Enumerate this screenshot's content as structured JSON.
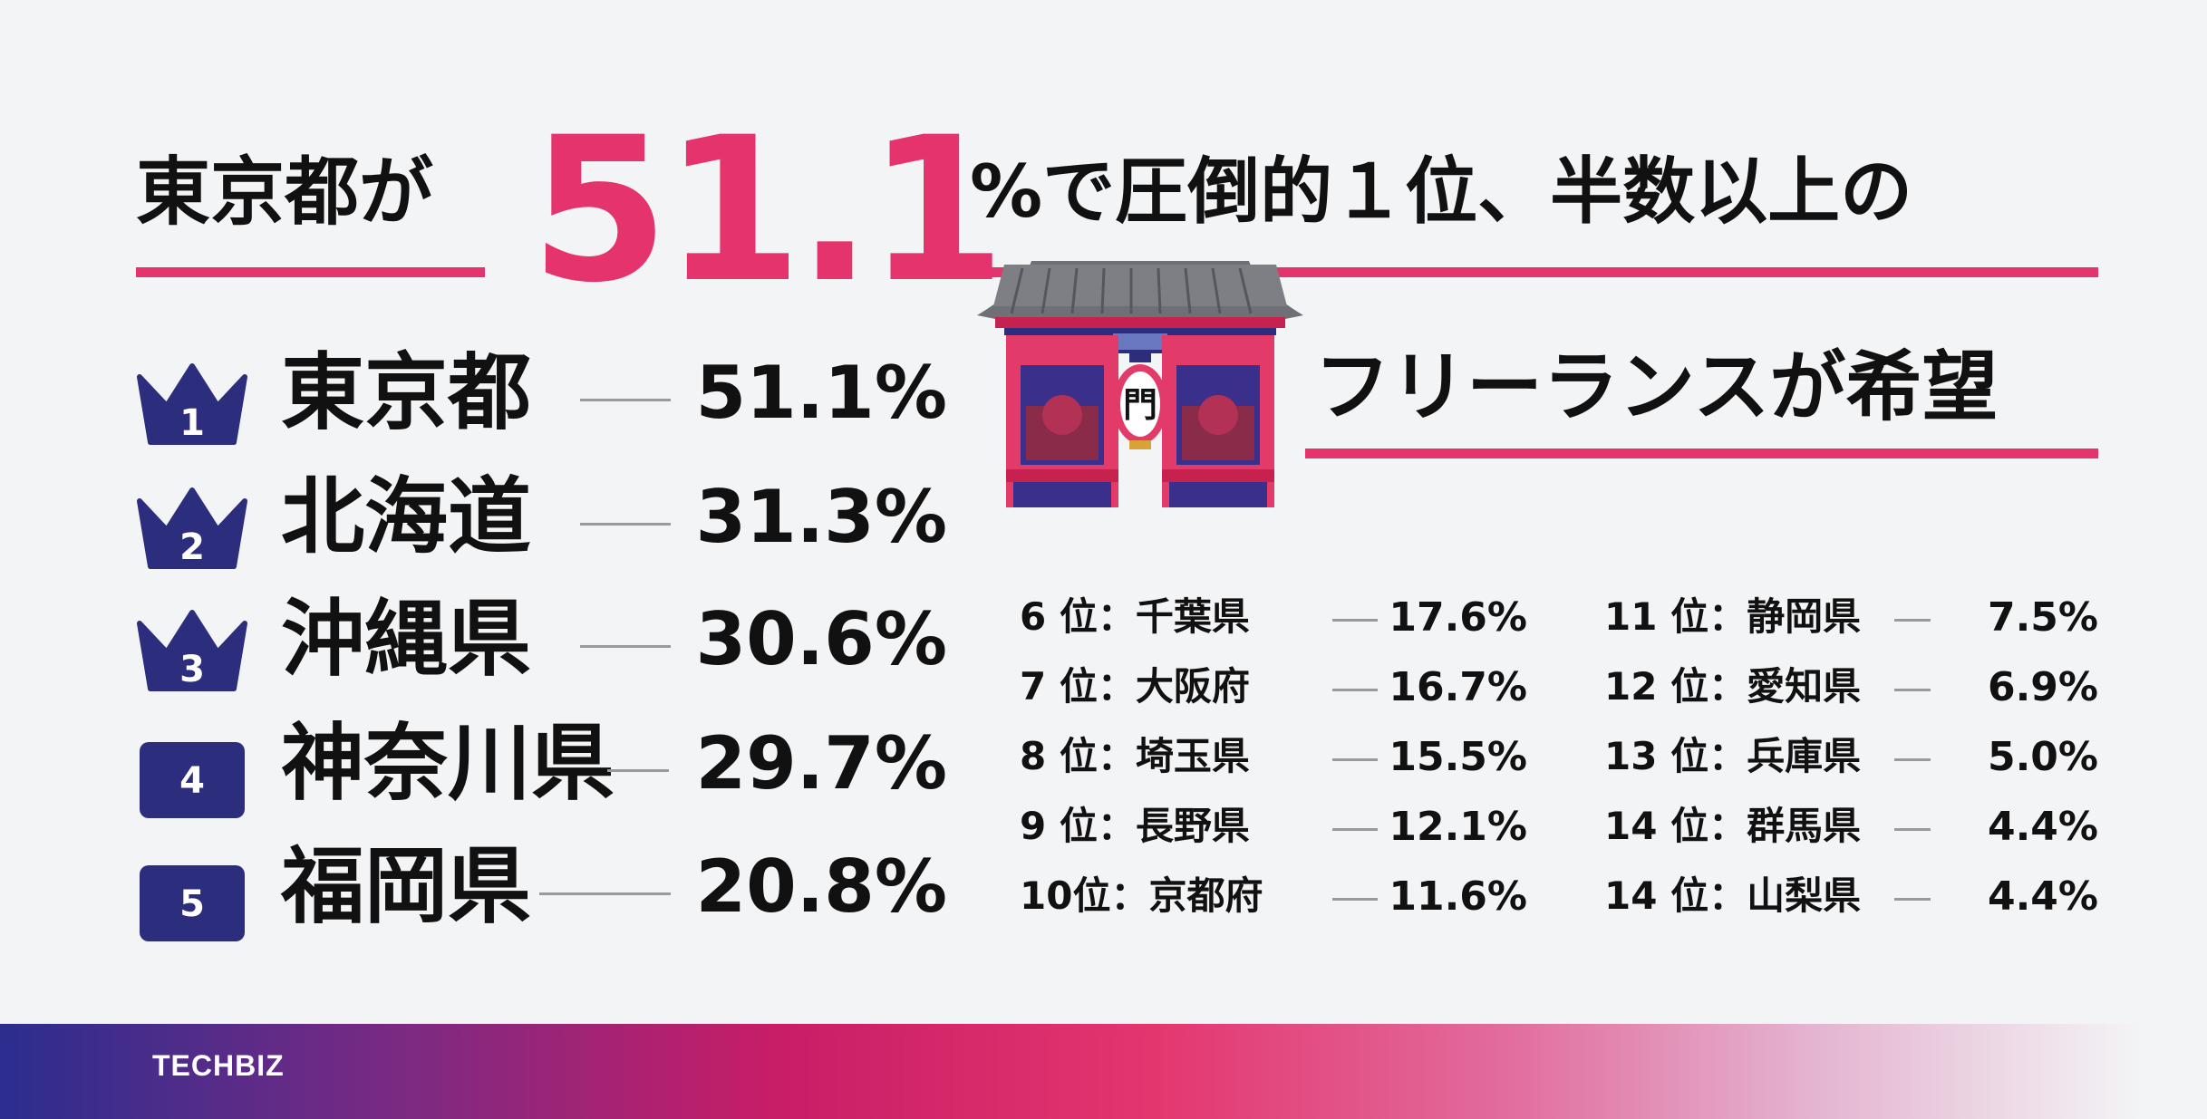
{
  "headline": {
    "prefix": "東京都が",
    "highlight": "51.1",
    "suffix": "%で圧倒的１位、半数以上の",
    "line2": "フリーランスが希望"
  },
  "colors": {
    "accent": "#e5336d",
    "badge": "#2d2d7e",
    "text": "#111111",
    "background": "#f3f4f6"
  },
  "gate_icon": "kaminarimon-gate-icon",
  "crown_icon": "crown-icon",
  "chart_data": {
    "type": "table",
    "unit": "%",
    "top5": [
      {
        "rank": "1",
        "prefecture": "東京都",
        "value": 51.1,
        "label": "51.1%"
      },
      {
        "rank": "2",
        "prefecture": "北海道",
        "value": 31.3,
        "label": "31.3%"
      },
      {
        "rank": "3",
        "prefecture": "沖縄県",
        "value": 30.6,
        "label": "30.6%"
      },
      {
        "rank": "4",
        "prefecture": "神奈川県",
        "value": 29.7,
        "label": "29.7%"
      },
      {
        "rank": "5",
        "prefecture": "福岡県",
        "value": 20.8,
        "label": "20.8%"
      }
    ],
    "rest": [
      {
        "rank_label": "6 位：千葉県",
        "value": 17.6,
        "label": "17.6%"
      },
      {
        "rank_label": "7 位：大阪府",
        "value": 16.7,
        "label": "16.7%"
      },
      {
        "rank_label": "8 位：埼玉県",
        "value": 15.5,
        "label": "15.5%"
      },
      {
        "rank_label": "9 位：長野県",
        "value": 12.1,
        "label": "12.1%"
      },
      {
        "rank_label": "10位：京都府",
        "value": 11.6,
        "label": "11.6%"
      },
      {
        "rank_label": "11 位：静岡県",
        "value": 7.5,
        "label": "7.5%"
      },
      {
        "rank_label": "12 位：愛知県",
        "value": 6.9,
        "label": "6.9%"
      },
      {
        "rank_label": "13 位：兵庫県",
        "value": 5.0,
        "label": "5.0%"
      },
      {
        "rank_label": "14 位：群馬県",
        "value": 4.4,
        "label": "4.4%"
      },
      {
        "rank_label": "14 位：山梨県",
        "value": 4.4,
        "label": "4.4%"
      }
    ]
  },
  "footer": {
    "brand": "TECHBIZ"
  }
}
